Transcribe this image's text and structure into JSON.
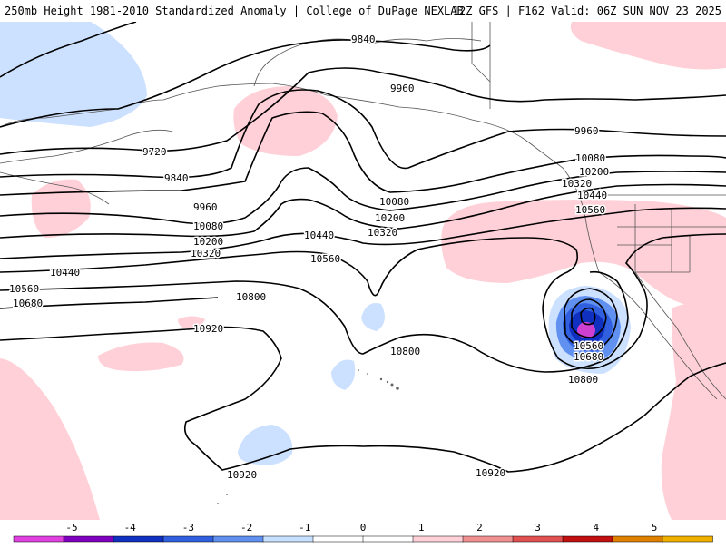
{
  "header": {
    "title": "250mb Height 1981-2010 Standardized Anomaly | College of DuPage NEXLAB",
    "run": "12Z GFS | F162 Valid: 06Z SUN NOV 23 2025"
  },
  "contour_labels": [
    "9720",
    "9840",
    "9840",
    "9960",
    "9960",
    "9960",
    "10080",
    "10080",
    "10080",
    "10200",
    "10200",
    "10200",
    "10320",
    "10320",
    "10320",
    "10440",
    "10440",
    "10440",
    "10560",
    "10560",
    "10560",
    "10560",
    "10680",
    "10680",
    "10800",
    "10800",
    "10800",
    "10920",
    "10920",
    "10920"
  ],
  "legend": {
    "ticks": [
      "-5",
      "-4",
      "-3",
      "-2",
      "-1",
      "0",
      "1",
      "2",
      "3",
      "4",
      "5"
    ],
    "colors": [
      "#e040e0",
      "#8000c0",
      "#1030c0",
      "#3060e0",
      "#6090f0",
      "#c8e0ff",
      "#ffffff",
      "#ffffff",
      "#ffd0d8",
      "#f09090",
      "#e05050",
      "#c01010",
      "#e08000",
      "#f0b000"
    ]
  }
}
